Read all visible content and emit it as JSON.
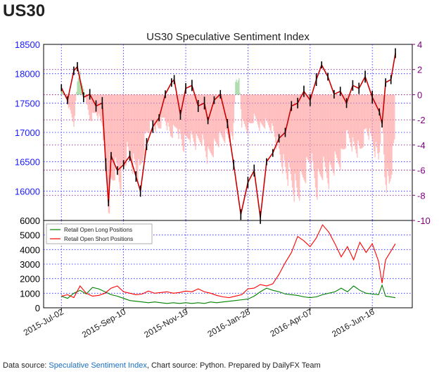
{
  "page": {
    "symbol": "US30",
    "footer": {
      "prefix": "Data source: ",
      "link_text": "Speculative Sentiment Index",
      "suffix": ", Chart source: Python. Prepared by DailyFX Team"
    }
  },
  "chart_data": [
    {
      "type": "line",
      "title": "US30 Speculative Sentiment Index",
      "x_range": [
        "2015-06-12",
        "2016-07-31"
      ],
      "x_tick_labels": [
        "2015-Jul-02",
        "2015-Sep-10",
        "2015-Nov-19",
        "2016-Jan-28",
        "2016-Apr-07",
        "2016-Jun-16"
      ],
      "x_ticks": [
        "2015-07-02",
        "2015-09-10",
        "2015-11-19",
        "2016-01-28",
        "2016-04-07",
        "2016-06-16"
      ],
      "left_axis": {
        "ylim": [
          15500,
          18500
        ],
        "ticks": [
          16000,
          16500,
          17000,
          17500,
          18000,
          18500
        ],
        "color": "#1a1aff"
      },
      "right_axis": {
        "ylim": [
          -10,
          4
        ],
        "ticks": [
          -10,
          -8,
          -6,
          -4,
          -2,
          0,
          2,
          4
        ],
        "color": "#800080"
      },
      "grid": true,
      "price_series": {
        "name": "US30",
        "points": [
          [
            "2015-07-02",
            17760
          ],
          [
            "2015-07-09",
            17550
          ],
          [
            "2015-07-16",
            18050
          ],
          [
            "2015-07-20",
            18120
          ],
          [
            "2015-07-27",
            17600
          ],
          [
            "2015-08-03",
            17650
          ],
          [
            "2015-08-10",
            17450
          ],
          [
            "2015-08-17",
            17500
          ],
          [
            "2015-08-21",
            16450
          ],
          [
            "2015-08-24",
            15800
          ],
          [
            "2015-08-27",
            16600
          ],
          [
            "2015-09-03",
            16350
          ],
          [
            "2015-09-10",
            16450
          ],
          [
            "2015-09-17",
            16600
          ],
          [
            "2015-09-24",
            16250
          ],
          [
            "2015-09-29",
            16000
          ],
          [
            "2015-10-06",
            16800
          ],
          [
            "2015-10-13",
            17100
          ],
          [
            "2015-10-20",
            17250
          ],
          [
            "2015-10-27",
            17650
          ],
          [
            "2015-11-03",
            17850
          ],
          [
            "2015-11-06",
            17900
          ],
          [
            "2015-11-13",
            17300
          ],
          [
            "2015-11-19",
            17750
          ],
          [
            "2015-11-26",
            17800
          ],
          [
            "2015-12-03",
            17450
          ],
          [
            "2015-12-10",
            17500
          ],
          [
            "2015-12-14",
            17200
          ],
          [
            "2015-12-21",
            17550
          ],
          [
            "2015-12-28",
            17650
          ],
          [
            "2016-01-05",
            17150
          ],
          [
            "2016-01-12",
            16450
          ],
          [
            "2016-01-20",
            15600
          ],
          [
            "2016-01-28",
            16150
          ],
          [
            "2016-02-04",
            16350
          ],
          [
            "2016-02-11",
            15550
          ],
          [
            "2016-02-18",
            16500
          ],
          [
            "2016-02-25",
            16650
          ],
          [
            "2016-03-03",
            16900
          ],
          [
            "2016-03-10",
            17000
          ],
          [
            "2016-03-17",
            17450
          ],
          [
            "2016-03-24",
            17500
          ],
          [
            "2016-03-31",
            17700
          ],
          [
            "2016-04-07",
            17550
          ],
          [
            "2016-04-14",
            17900
          ],
          [
            "2016-04-20",
            18150
          ],
          [
            "2016-04-27",
            17950
          ],
          [
            "2016-05-04",
            17650
          ],
          [
            "2016-05-11",
            17700
          ],
          [
            "2016-05-18",
            17500
          ],
          [
            "2016-05-25",
            17800
          ],
          [
            "2016-06-01",
            17750
          ],
          [
            "2016-06-08",
            17950
          ],
          [
            "2016-06-16",
            17600
          ],
          [
            "2016-06-24",
            17350
          ],
          [
            "2016-06-27",
            17150
          ],
          [
            "2016-07-01",
            17850
          ],
          [
            "2016-07-07",
            17900
          ],
          [
            "2016-07-12",
            18350
          ]
        ]
      },
      "ssi_series": {
        "name": "SSI",
        "points": [
          [
            "2015-07-02",
            0.7
          ],
          [
            "2015-07-09",
            -0.8
          ],
          [
            "2015-07-16",
            -2.5
          ],
          [
            "2015-07-20",
            1.2
          ],
          [
            "2015-07-23",
            1.8
          ],
          [
            "2015-07-27",
            0.5
          ],
          [
            "2015-08-03",
            -2.2
          ],
          [
            "2015-08-10",
            -1.5
          ],
          [
            "2015-08-17",
            -2.5
          ],
          [
            "2015-08-24",
            -9.2
          ],
          [
            "2015-08-31",
            -6.5
          ],
          [
            "2015-09-07",
            -7.5
          ],
          [
            "2015-09-14",
            -5.0
          ],
          [
            "2015-09-21",
            -6.0
          ],
          [
            "2015-09-28",
            -7.0
          ],
          [
            "2015-10-05",
            -3.5
          ],
          [
            "2015-10-12",
            -2.5
          ],
          [
            "2015-10-19",
            -3.0
          ],
          [
            "2015-10-26",
            -2.0
          ],
          [
            "2015-11-02",
            -3.5
          ],
          [
            "2015-11-09",
            -2.8
          ],
          [
            "2015-11-16",
            -4.5
          ],
          [
            "2015-11-23",
            -3.5
          ],
          [
            "2015-11-30",
            -4.2
          ],
          [
            "2015-12-07",
            -3.8
          ],
          [
            "2015-12-14",
            -5.5
          ],
          [
            "2015-12-21",
            -4.5
          ],
          [
            "2015-12-28",
            -3.8
          ],
          [
            "2016-01-04",
            -3.5
          ],
          [
            "2016-01-11",
            -4.2
          ],
          [
            "2016-01-14",
            1.0
          ],
          [
            "2016-01-18",
            1.5
          ],
          [
            "2016-01-21",
            -2.5
          ],
          [
            "2016-01-28",
            -3.0
          ],
          [
            "2016-02-04",
            -2.0
          ],
          [
            "2016-02-11",
            -2.8
          ],
          [
            "2016-02-18",
            -2.5
          ],
          [
            "2016-02-25",
            -3.0
          ],
          [
            "2016-03-03",
            -5.0
          ],
          [
            "2016-03-10",
            -6.5
          ],
          [
            "2016-03-17",
            -7.5
          ],
          [
            "2016-03-24",
            -8.5
          ],
          [
            "2016-03-31",
            -7.0
          ],
          [
            "2016-04-07",
            -5.5
          ],
          [
            "2016-04-14",
            -8.0
          ],
          [
            "2016-04-21",
            -6.5
          ],
          [
            "2016-04-28",
            -7.0
          ],
          [
            "2016-05-05",
            -6.0
          ],
          [
            "2016-05-12",
            -5.5
          ],
          [
            "2016-05-19",
            -3.5
          ],
          [
            "2016-05-26",
            -4.5
          ],
          [
            "2016-06-02",
            -5.0
          ],
          [
            "2016-06-09",
            -3.0
          ],
          [
            "2016-06-16",
            -4.0
          ],
          [
            "2016-06-23",
            -5.5
          ],
          [
            "2016-06-27",
            -2.0
          ],
          [
            "2016-06-30",
            -6.8
          ],
          [
            "2016-07-05",
            -8.0
          ],
          [
            "2016-07-12",
            -3.5
          ]
        ]
      }
    },
    {
      "type": "line",
      "ylim": [
        0,
        6000
      ],
      "y_ticks": [
        0,
        1000,
        2000,
        3000,
        4000,
        5000,
        6000
      ],
      "legend_position": "top-left",
      "grid": true,
      "series": [
        {
          "name": "Retail Open Long Positions",
          "color": "#008000",
          "points": [
            [
              "2015-07-02",
              800
            ],
            [
              "2015-07-09",
              650
            ],
            [
              "2015-07-16",
              1000
            ],
            [
              "2015-07-23",
              1200
            ],
            [
              "2015-07-30",
              950
            ],
            [
              "2015-08-06",
              1400
            ],
            [
              "2015-08-13",
              1300
            ],
            [
              "2015-08-20",
              1100
            ],
            [
              "2015-08-27",
              900
            ],
            [
              "2015-09-03",
              800
            ],
            [
              "2015-09-10",
              650
            ],
            [
              "2015-09-17",
              500
            ],
            [
              "2015-09-24",
              450
            ],
            [
              "2015-10-01",
              400
            ],
            [
              "2015-10-08",
              350
            ],
            [
              "2015-10-15",
              400
            ],
            [
              "2015-10-22",
              350
            ],
            [
              "2015-10-29",
              300
            ],
            [
              "2015-11-05",
              350
            ],
            [
              "2015-11-12",
              300
            ],
            [
              "2015-11-19",
              350
            ],
            [
              "2015-11-26",
              300
            ],
            [
              "2015-12-03",
              350
            ],
            [
              "2015-12-10",
              300
            ],
            [
              "2015-12-17",
              400
            ],
            [
              "2015-12-24",
              350
            ],
            [
              "2015-12-31",
              400
            ],
            [
              "2016-01-07",
              450
            ],
            [
              "2016-01-14",
              500
            ],
            [
              "2016-01-21",
              550
            ],
            [
              "2016-01-28",
              600
            ],
            [
              "2016-02-04",
              800
            ],
            [
              "2016-02-11",
              1100
            ],
            [
              "2016-02-18",
              1350
            ],
            [
              "2016-02-25",
              1200
            ],
            [
              "2016-03-03",
              1100
            ],
            [
              "2016-03-10",
              950
            ],
            [
              "2016-03-17",
              900
            ],
            [
              "2016-03-24",
              850
            ],
            [
              "2016-03-31",
              750
            ],
            [
              "2016-04-07",
              700
            ],
            [
              "2016-04-14",
              750
            ],
            [
              "2016-04-21",
              900
            ],
            [
              "2016-04-28",
              1000
            ],
            [
              "2016-05-05",
              1100
            ],
            [
              "2016-05-12",
              1350
            ],
            [
              "2016-05-19",
              1100
            ],
            [
              "2016-05-26",
              1500
            ],
            [
              "2016-06-02",
              1200
            ],
            [
              "2016-06-09",
              1000
            ],
            [
              "2016-06-16",
              950
            ],
            [
              "2016-06-23",
              900
            ],
            [
              "2016-06-27",
              1550
            ],
            [
              "2016-07-01",
              800
            ],
            [
              "2016-07-12",
              700
            ]
          ]
        },
        {
          "name": "Retail Open Short Positions",
          "color": "#ff0000",
          "points": [
            [
              "2015-07-02",
              800
            ],
            [
              "2015-07-09",
              900
            ],
            [
              "2015-07-16",
              700
            ],
            [
              "2015-07-23",
              1500
            ],
            [
              "2015-07-30",
              1000
            ],
            [
              "2015-08-06",
              800
            ],
            [
              "2015-08-13",
              850
            ],
            [
              "2015-08-20",
              1000
            ],
            [
              "2015-08-27",
              1350
            ],
            [
              "2015-09-03",
              1500
            ],
            [
              "2015-09-10",
              1100
            ],
            [
              "2015-09-17",
              1000
            ],
            [
              "2015-09-24",
              900
            ],
            [
              "2015-10-01",
              950
            ],
            [
              "2015-10-08",
              1150
            ],
            [
              "2015-10-15",
              1000
            ],
            [
              "2015-10-22",
              1050
            ],
            [
              "2015-10-29",
              1100
            ],
            [
              "2015-11-05",
              1000
            ],
            [
              "2015-11-12",
              1050
            ],
            [
              "2015-11-19",
              1150
            ],
            [
              "2015-11-26",
              1100
            ],
            [
              "2015-12-03",
              1300
            ],
            [
              "2015-12-10",
              1100
            ],
            [
              "2015-12-17",
              1000
            ],
            [
              "2015-12-24",
              850
            ],
            [
              "2015-12-31",
              750
            ],
            [
              "2016-01-07",
              700
            ],
            [
              "2016-01-14",
              800
            ],
            [
              "2016-01-21",
              900
            ],
            [
              "2016-01-28",
              1300
            ],
            [
              "2016-02-04",
              1350
            ],
            [
              "2016-02-11",
              1600
            ],
            [
              "2016-02-18",
              1500
            ],
            [
              "2016-02-25",
              1650
            ],
            [
              "2016-03-03",
              2300
            ],
            [
              "2016-03-10",
              3100
            ],
            [
              "2016-03-17",
              3800
            ],
            [
              "2016-03-24",
              4900
            ],
            [
              "2016-03-31",
              4600
            ],
            [
              "2016-04-07",
              4200
            ],
            [
              "2016-04-14",
              4800
            ],
            [
              "2016-04-21",
              5700
            ],
            [
              "2016-04-28",
              5200
            ],
            [
              "2016-05-05",
              4400
            ],
            [
              "2016-05-12",
              3500
            ],
            [
              "2016-05-19",
              4200
            ],
            [
              "2016-05-26",
              3300
            ],
            [
              "2016-06-02",
              4500
            ],
            [
              "2016-06-09",
              3800
            ],
            [
              "2016-06-16",
              4400
            ],
            [
              "2016-06-23",
              3200
            ],
            [
              "2016-06-27",
              1700
            ],
            [
              "2016-07-01",
              3300
            ],
            [
              "2016-07-12",
              4400
            ]
          ]
        }
      ]
    }
  ]
}
